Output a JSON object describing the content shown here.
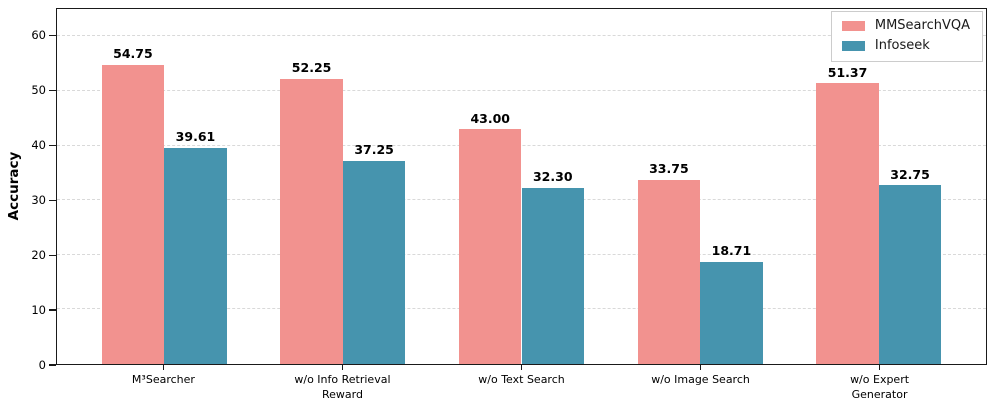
{
  "chart_data": {
    "type": "bar",
    "title": "",
    "xlabel": "",
    "ylabel": "Accuracy",
    "categories": [
      "M³Searcher",
      "w/o Info Retrieval\nReward",
      "w/o Text Search",
      "w/o Image Search",
      "w/o Expert Generator"
    ],
    "series": [
      {
        "name": "MMSearchVQA",
        "color": "#F2928F",
        "values": [
          54.75,
          52.25,
          43.0,
          33.75,
          51.37
        ]
      },
      {
        "name": "Infoseek",
        "color": "#4694AE",
        "values": [
          39.61,
          37.25,
          32.3,
          18.71,
          32.75
        ]
      }
    ],
    "value_labels": [
      [
        "54.75",
        "52.25",
        "43.00",
        "33.75",
        "51.37"
      ],
      [
        "39.61",
        "37.25",
        "32.30",
        "18.71",
        "32.75"
      ]
    ],
    "ylim": [
      0,
      65
    ],
    "yticks": [
      0,
      10,
      20,
      30,
      40,
      50,
      60
    ],
    "grid": "horizontal-dashed",
    "legend_position": "upper right"
  },
  "colors": {
    "spine": "#1a1a1a",
    "gridline": "#d9d9d9",
    "background": "#ffffff"
  }
}
